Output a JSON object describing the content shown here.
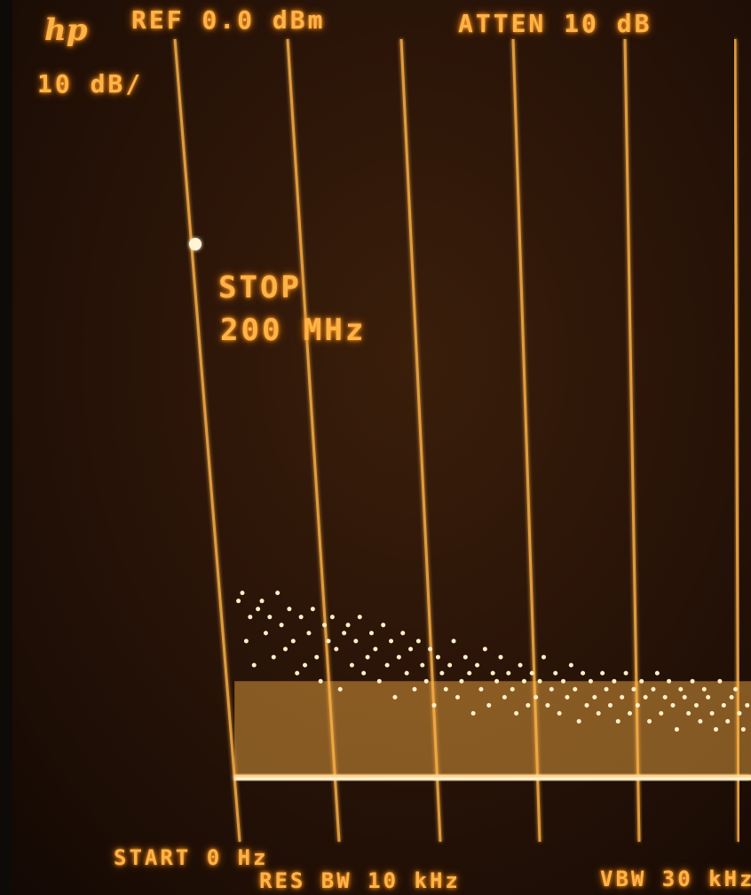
{
  "screen": {
    "logo": "hp",
    "ref_label": "REF 0.0 dBm",
    "atten_label": "ATTEN 10 dB",
    "scale_label": "10 dB/",
    "stop_label": "STOP",
    "stop_value": "200 MHz",
    "start_label": "START 0 Hz",
    "rbw_label": "RES BW 10 kHz",
    "vbw_label": "VBW 30 kHz"
  },
  "colors": {
    "trace": "#ffb347",
    "glow": "#ff9a1f",
    "background": "#2a1408"
  },
  "chart_data": {
    "type": "line",
    "title": "",
    "xlabel": "",
    "ylabel": "",
    "xlim": [
      0,
      200
    ],
    "ylim": [
      -100,
      0
    ],
    "x_unit": "MHz",
    "y_unit": "dBm",
    "grid": true,
    "series": [
      {
        "x": [
          1,
          2,
          3,
          4,
          5,
          6,
          7,
          8,
          9,
          10,
          11,
          12,
          13,
          14,
          15,
          16,
          17,
          18,
          19,
          20,
          21,
          22,
          23,
          24,
          25,
          26,
          27,
          28,
          29,
          30,
          31,
          32,
          33,
          34,
          35,
          36,
          37,
          38,
          39,
          40,
          41,
          42,
          43,
          44,
          45,
          46,
          47,
          48,
          49,
          50,
          51,
          52,
          53,
          54,
          55,
          56,
          57,
          58,
          59,
          60,
          61,
          62,
          63,
          64,
          65,
          66,
          67,
          68,
          69,
          70,
          71,
          72,
          73,
          74,
          75,
          76,
          77,
          78,
          79,
          80,
          81,
          82,
          83,
          84,
          85,
          86,
          87,
          88,
          89,
          90,
          91,
          92,
          93,
          94,
          95,
          96,
          97,
          98,
          99,
          100,
          101,
          102,
          103,
          104,
          105,
          106,
          107,
          108,
          109,
          110,
          111,
          112,
          113,
          114,
          115,
          116,
          117,
          118,
          119,
          120,
          121,
          122,
          123,
          124,
          125,
          126,
          127,
          128,
          129,
          130,
          131,
          132,
          133,
          134,
          135,
          136,
          137,
          138,
          139,
          140,
          141,
          142,
          143,
          144,
          145,
          146,
          147,
          148
        ],
        "y": [
          -70,
          -69,
          -75,
          -72,
          -78,
          -71,
          -70,
          -74,
          -72,
          -77,
          -69,
          -73,
          -76,
          -71,
          -75,
          -79,
          -72,
          -78,
          -74,
          -71,
          -77,
          -80,
          -73,
          -75,
          -72,
          -76,
          -81,
          -74,
          -73,
          -78,
          -75,
          -72,
          -79,
          -77,
          -74,
          -76,
          -80,
          -73,
          -78,
          -75,
          -82,
          -77,
          -74,
          -79,
          -76,
          -81,
          -75,
          -78,
          -80,
          -76,
          -83,
          -77,
          -79,
          -81,
          -78,
          -75,
          -82,
          -80,
          -77,
          -79,
          -84,
          -78,
          -81,
          -76,
          -83,
          -79,
          -80,
          -77,
          -82,
          -79,
          -81,
          -84,
          -78,
          -80,
          -83,
          -79,
          -82,
          -80,
          -77,
          -83,
          -81,
          -79,
          -84,
          -80,
          -82,
          -78,
          -81,
          -85,
          -79,
          -83,
          -80,
          -82,
          -84,
          -79,
          -81,
          -83,
          -80,
          -85,
          -82,
          -79,
          -84,
          -81,
          -83,
          -80,
          -82,
          -85,
          -81,
          -79,
          -84,
          -82,
          -80,
          -83,
          -86,
          -81,
          -82,
          -84,
          -80,
          -83,
          -85,
          -81,
          -82,
          -84,
          -86,
          -80,
          -83,
          -85,
          -82,
          -81,
          -84,
          -86,
          -83,
          -80,
          -85,
          -82,
          -84,
          -86,
          -81,
          -83,
          -85,
          -82,
          -84,
          -87,
          -83,
          -81,
          -85,
          -84,
          -82,
          -86
        ]
      }
    ],
    "noise_floor": -92
  }
}
